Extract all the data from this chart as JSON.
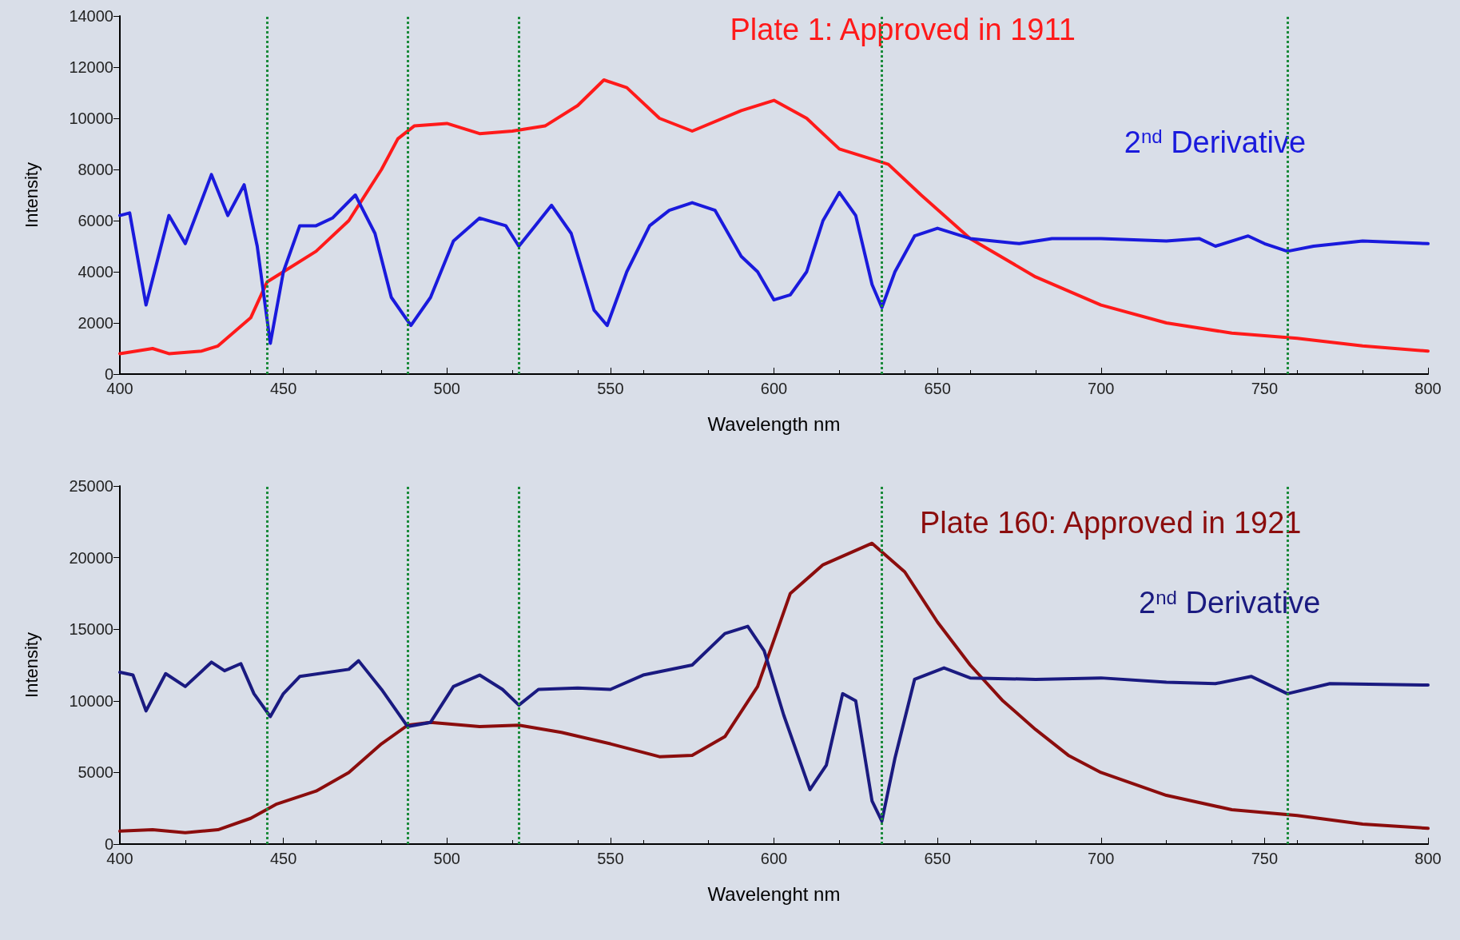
{
  "chart_data": [
    {
      "type": "line",
      "xlabel": "Wavelength nm",
      "ylabel": "Intensity",
      "xlim": [
        400,
        800
      ],
      "xticks": [
        400,
        450,
        500,
        550,
        600,
        650,
        700,
        750,
        800
      ],
      "ylim": [
        0,
        14000
      ],
      "yticks": [
        0,
        2000,
        4000,
        6000,
        8000,
        10000,
        12000,
        14000
      ],
      "grid": false,
      "legend": false,
      "marker": "none",
      "line_style": "solid",
      "series": [
        {
          "name": "Plate 1: Approved in 1911",
          "color": "#ff1a1a",
          "x": [
            400,
            410,
            415,
            425,
            430,
            440,
            445,
            450,
            460,
            470,
            480,
            485,
            490,
            500,
            510,
            520,
            530,
            540,
            548,
            555,
            565,
            575,
            590,
            600,
            610,
            620,
            630,
            635,
            645,
            660,
            680,
            700,
            720,
            740,
            760,
            780,
            800
          ],
          "values": [
            800,
            1000,
            800,
            900,
            1100,
            2200,
            3600,
            4000,
            4800,
            6000,
            8000,
            9200,
            9700,
            9800,
            9400,
            9500,
            9700,
            10500,
            11500,
            11200,
            10000,
            9500,
            10300,
            10700,
            10000,
            8800,
            8400,
            8200,
            7000,
            5300,
            3800,
            2700,
            2000,
            1600,
            1400,
            1100,
            900
          ]
        },
        {
          "name": "2$^{nd}$ Derivative",
          "color": "#1a1adc",
          "x": [
            400,
            403,
            408,
            415,
            420,
            428,
            433,
            438,
            442,
            446,
            450,
            455,
            460,
            465,
            472,
            478,
            483,
            489,
            495,
            502,
            510,
            518,
            522,
            527,
            532,
            538,
            545,
            549,
            555,
            562,
            568,
            575,
            582,
            590,
            595,
            600,
            605,
            610,
            615,
            620,
            625,
            630,
            633,
            637,
            643,
            650,
            660,
            675,
            685,
            700,
            720,
            730,
            735,
            745,
            750,
            757,
            765,
            780,
            800
          ],
          "values": [
            6200,
            6300,
            2700,
            6200,
            5100,
            7800,
            6200,
            7400,
            5000,
            1200,
            4000,
            5800,
            5800,
            6100,
            7000,
            5500,
            3000,
            1900,
            3000,
            5200,
            6100,
            5800,
            5000,
            5800,
            6600,
            5500,
            2500,
            1900,
            4000,
            5800,
            6400,
            6700,
            6400,
            4600,
            4000,
            2900,
            3100,
            4000,
            6000,
            7100,
            6200,
            3500,
            2600,
            4000,
            5400,
            5700,
            5300,
            5100,
            5300,
            5300,
            5200,
            5300,
            5000,
            5400,
            5100,
            4800,
            5000,
            5200,
            5100
          ]
        }
      ],
      "ref_lines": [
        {
          "axis": "x",
          "value": 445,
          "color": "#1a8a3a",
          "line_style": "dotted"
        },
        {
          "axis": "x",
          "value": 488,
          "color": "#1a8a3a",
          "line_style": "dotted"
        },
        {
          "axis": "x",
          "value": 522,
          "color": "#1a8a3a",
          "line_style": "dotted"
        },
        {
          "axis": "x",
          "value": 633,
          "color": "#1a8a3a",
          "line_style": "dotted"
        },
        {
          "axis": "x",
          "value": 757,
          "color": "#1a8a3a",
          "line_style": "dotted"
        }
      ]
    },
    {
      "type": "line",
      "xlabel": "Wavelenght nm",
      "ylabel": "Intensity",
      "xlim": [
        400,
        800
      ],
      "xticks": [
        400,
        450,
        500,
        550,
        600,
        650,
        700,
        750,
        800
      ],
      "ylim": [
        0,
        25000
      ],
      "yticks": [
        0,
        5000,
        10000,
        15000,
        20000,
        25000
      ],
      "grid": false,
      "legend": false,
      "marker": "none",
      "line_style": "solid",
      "series": [
        {
          "name": "Plate 160: Approved in 1921",
          "color": "#8b0d0d",
          "x": [
            400,
            410,
            420,
            430,
            440,
            448,
            460,
            470,
            480,
            488,
            495,
            510,
            522,
            535,
            550,
            565,
            575,
            585,
            595,
            605,
            615,
            625,
            630,
            640,
            650,
            660,
            670,
            680,
            690,
            700,
            720,
            740,
            760,
            780,
            800
          ],
          "values": [
            900,
            1000,
            800,
            1000,
            1800,
            2800,
            3700,
            5000,
            7000,
            8300,
            8500,
            8200,
            8300,
            7800,
            7000,
            6100,
            6200,
            7500,
            11000,
            17500,
            19500,
            20500,
            21000,
            19000,
            15500,
            12500,
            10000,
            8000,
            6200,
            5000,
            3400,
            2400,
            2000,
            1400,
            1100
          ]
        },
        {
          "name": "2$^{nd}$ Derivative",
          "color": "#1a1a80",
          "x": [
            400,
            404,
            408,
            414,
            420,
            428,
            432,
            437,
            441,
            446,
            450,
            455,
            470,
            473,
            480,
            488,
            495,
            502,
            510,
            517,
            522,
            528,
            540,
            550,
            560,
            575,
            585,
            592,
            597,
            603,
            611,
            616,
            621,
            625,
            630,
            633,
            637,
            643,
            652,
            660,
            680,
            700,
            720,
            735,
            746,
            757,
            770,
            800
          ],
          "values": [
            12000,
            11800,
            9300,
            11900,
            11000,
            12700,
            12100,
            12600,
            10500,
            8900,
            10500,
            11700,
            12200,
            12800,
            10800,
            8200,
            8500,
            11000,
            11800,
            10800,
            9700,
            10800,
            10900,
            10800,
            11800,
            12500,
            14700,
            15200,
            13500,
            9000,
            3800,
            5500,
            10500,
            10000,
            3000,
            1600,
            6000,
            11500,
            12300,
            11600,
            11500,
            11600,
            11300,
            11200,
            11700,
            10500,
            11200,
            11100
          ]
        }
      ],
      "ref_lines": [
        {
          "axis": "x",
          "value": 445,
          "color": "#1a8a3a",
          "line_style": "dotted"
        },
        {
          "axis": "x",
          "value": 488,
          "color": "#1a8a3a",
          "line_style": "dotted"
        },
        {
          "axis": "x",
          "value": 522,
          "color": "#1a8a3a",
          "line_style": "dotted"
        },
        {
          "axis": "x",
          "value": 633,
          "color": "#1a8a3a",
          "line_style": "dotted"
        },
        {
          "axis": "x",
          "value": 757,
          "color": "#1a8a3a",
          "line_style": "dotted"
        }
      ]
    }
  ]
}
